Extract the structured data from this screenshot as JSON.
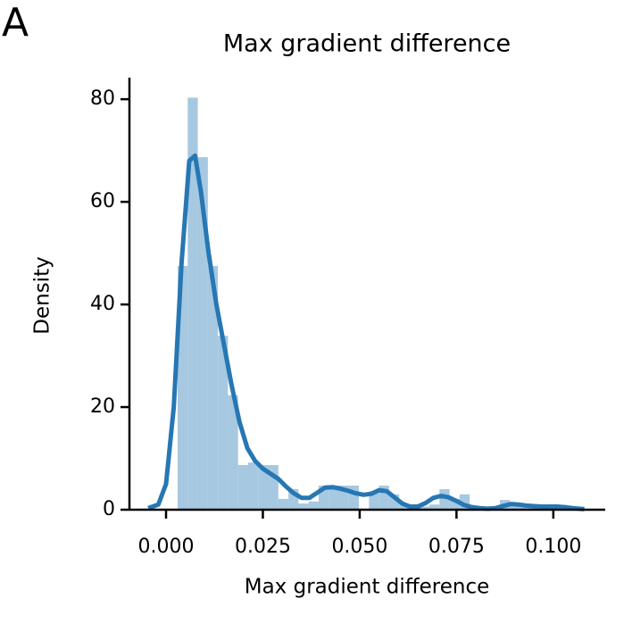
{
  "panel_label": "A",
  "chart_data": {
    "type": "histogram",
    "title": "Max gradient difference",
    "xlabel": "Max gradient difference",
    "ylabel": "Density",
    "bins": [
      0.003,
      0.0056,
      0.0082,
      0.0108,
      0.0134,
      0.016,
      0.0186,
      0.0212,
      0.0238,
      0.0264,
      0.029,
      0.0316,
      0.0342,
      0.0368,
      0.0394,
      0.042,
      0.0446,
      0.0472,
      0.0498,
      0.0524,
      0.055,
      0.0576,
      0.0602,
      0.0628,
      0.0654,
      0.068,
      0.0706,
      0.0732,
      0.0758,
      0.0784,
      0.081,
      0.0836,
      0.0862,
      0.0888,
      0.0914,
      0.094,
      0.0966,
      0.0992,
      0.1018,
      0.1044,
      0.107
    ],
    "values": [
      47.5,
      80.3,
      68.7,
      47.5,
      33.9,
      22.3,
      8.7,
      9.2,
      8.7,
      8.7,
      2.1,
      4.0,
      1.2,
      1.6,
      4.7,
      4.7,
      4.7,
      4.7,
      0,
      3.6,
      4.7,
      3.0,
      1.2,
      0.6,
      0.6,
      1.0,
      4.0,
      2.1,
      3.0,
      0.5,
      0,
      0.5,
      1.9,
      0.8,
      0.5,
      0.5,
      0.5,
      0.3,
      0.3,
      0.3
    ],
    "color": "#a6c8e0",
    "line": {
      "color": "#2677b3",
      "x": [
        -0.0046,
        -0.002,
        0,
        0.002,
        0.004,
        0.006,
        0.0075,
        0.009,
        0.011,
        0.013,
        0.015,
        0.017,
        0.019,
        0.021,
        0.023,
        0.025,
        0.027,
        0.029,
        0.031,
        0.033,
        0.035,
        0.037,
        0.039,
        0.041,
        0.043,
        0.045,
        0.047,
        0.049,
        0.051,
        0.053,
        0.055,
        0.057,
        0.059,
        0.061,
        0.063,
        0.065,
        0.067,
        0.069,
        0.071,
        0.073,
        0.075,
        0.077,
        0.079,
        0.081,
        0.083,
        0.085,
        0.087,
        0.089,
        0.091,
        0.093,
        0.095,
        0.097,
        0.099,
        0.101,
        0.103,
        0.105,
        0.108
      ],
      "values": [
        0.3,
        1,
        5,
        20,
        48,
        68,
        69,
        62,
        50,
        40,
        32,
        24,
        17,
        12,
        9.5,
        8,
        7,
        6,
        4.5,
        3.2,
        2.3,
        2.3,
        3.3,
        4.3,
        4.4,
        4.1,
        3.7,
        3.2,
        2.9,
        3.1,
        3.8,
        3.6,
        2.4,
        1.2,
        0.6,
        0.6,
        1.3,
        2.3,
        2.7,
        2.4,
        1.7,
        0.9,
        0.5,
        0.3,
        0.2,
        0.3,
        0.7,
        1.1,
        1.0,
        0.8,
        0.7,
        0.6,
        0.6,
        0.6,
        0.5,
        0.3,
        0.1
      ]
    },
    "xlim": [
      -0.00945,
      0.1134
    ],
    "ylim": [
      0,
      84.2
    ],
    "xticks": [
      {
        "value": 0,
        "label": "0.000"
      },
      {
        "value": 0.025,
        "label": "0.025"
      },
      {
        "value": 0.05,
        "label": "0.050"
      },
      {
        "value": 0.075,
        "label": "0.075"
      },
      {
        "value": 0.1,
        "label": "0.100"
      }
    ],
    "yticks": [
      0,
      20,
      40,
      60,
      80
    ]
  }
}
